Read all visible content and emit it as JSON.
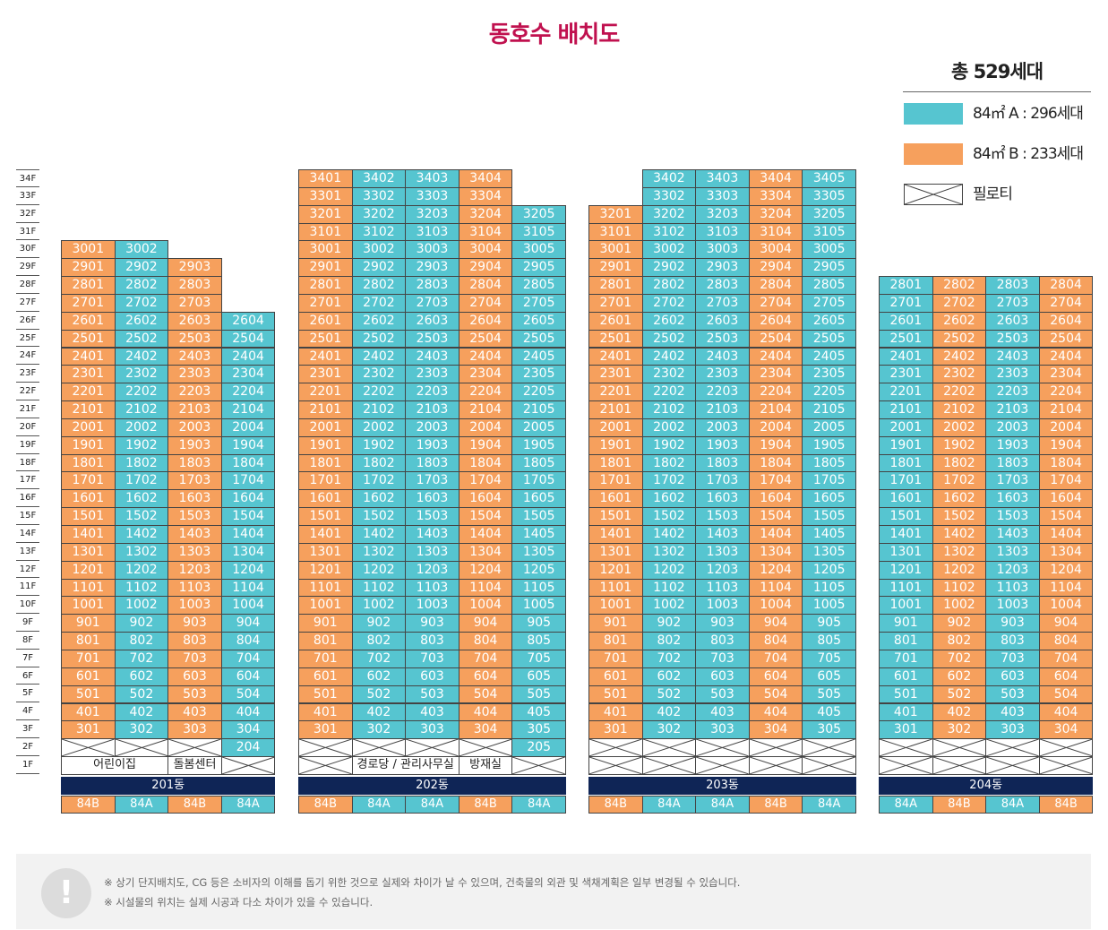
{
  "title": "동호수 배치도",
  "colors": {
    "A": "#56c5d0",
    "B": "#f6a05d",
    "title": "#c0114f",
    "building_bar": "#0f2556"
  },
  "legend": {
    "total": "총 529세대",
    "type_a": "84㎡ A : 296세대",
    "type_b": "84㎡ B : 233세대",
    "piloti": "필로티"
  },
  "floors": [
    "34F",
    "33F",
    "32F",
    "31F",
    "30F",
    "29F",
    "28F",
    "27F",
    "26F",
    "25F",
    "24F",
    "23F",
    "22F",
    "21F",
    "20F",
    "19F",
    "18F",
    "17F",
    "16F",
    "15F",
    "14F",
    "13F",
    "12F",
    "11F",
    "10F",
    "9F",
    "8F",
    "7F",
    "6F",
    "5F",
    "4F",
    "3F",
    "2F",
    "1F"
  ],
  "buildings": [
    {
      "name": "201동",
      "lines": [
        {
          "type": "B",
          "label": "84B",
          "top": 30,
          "f1": {
            "kind": "fac",
            "text": "어린이집",
            "span": 2
          },
          "f2": "pil"
        },
        {
          "type": "A",
          "label": "84A",
          "top": 30,
          "f1": {
            "kind": "covered"
          },
          "f2": "pil"
        },
        {
          "type": "B",
          "label": "84B",
          "top": 29,
          "f1": {
            "kind": "fac",
            "text": "돌봄센터",
            "span": 1
          },
          "f2": "pil"
        },
        {
          "type": "A",
          "label": "84A",
          "top": 26,
          "f1": {
            "kind": "pil"
          },
          "f2": "unit"
        }
      ]
    },
    {
      "name": "202동",
      "lines": [
        {
          "type": "B",
          "label": "84B",
          "top": 34,
          "f1": {
            "kind": "pil"
          },
          "f2": "pil"
        },
        {
          "type": "A",
          "label": "84A",
          "top": 34,
          "f1": {
            "kind": "fac",
            "text": "경로당 / 관리사무실",
            "span": 2
          },
          "f2": "pil"
        },
        {
          "type": "A",
          "label": "84A",
          "top": 34,
          "f1": {
            "kind": "covered"
          },
          "f2": "pil"
        },
        {
          "type": "B",
          "label": "84B",
          "top": 34,
          "f1": {
            "kind": "fac",
            "text": "방재실",
            "span": 1
          },
          "f2": "pil"
        },
        {
          "type": "A",
          "label": "84A",
          "top": 32,
          "f1": {
            "kind": "pil"
          },
          "f2": "unit"
        }
      ]
    },
    {
      "name": "203동",
      "lines": [
        {
          "type": "B",
          "label": "84B",
          "top": 32,
          "f1": {
            "kind": "pil"
          },
          "f2": "pil"
        },
        {
          "type": "A",
          "label": "84A",
          "top": 34,
          "f1": {
            "kind": "pil"
          },
          "f2": "pil"
        },
        {
          "type": "A",
          "label": "84A",
          "top": 34,
          "f1": {
            "kind": "pil"
          },
          "f2": "pil"
        },
        {
          "type": "B",
          "label": "84B",
          "top": 34,
          "f1": {
            "kind": "pil"
          },
          "f2": "pil"
        },
        {
          "type": "A",
          "label": "84A",
          "top": 34,
          "f1": {
            "kind": "pil"
          },
          "f2": "pil"
        }
      ]
    },
    {
      "name": "204동",
      "lines": [
        {
          "type": "A",
          "label": "84A",
          "top": 28,
          "f1": {
            "kind": "pil"
          },
          "f2": "pil"
        },
        {
          "type": "B",
          "label": "84B",
          "top": 28,
          "f1": {
            "kind": "pil"
          },
          "f2": "pil"
        },
        {
          "type": "A",
          "label": "84A",
          "top": 28,
          "f1": {
            "kind": "pil"
          },
          "f2": "pil"
        },
        {
          "type": "B",
          "label": "84B",
          "top": 28,
          "f1": {
            "kind": "pil"
          },
          "f2": "pil"
        }
      ]
    }
  ],
  "notes": [
    "※ 상기 단지배치도, CG 등은 소비자의 이해를 돕기 위한 것으로 실제와 차이가 날 수 있으며, 건축물의 외관 및 색채계획은 일부 변경될 수 있습니다.",
    "※ 시설물의 위치는 실제 시공과 다소 차이가 있을 수 있습니다."
  ]
}
